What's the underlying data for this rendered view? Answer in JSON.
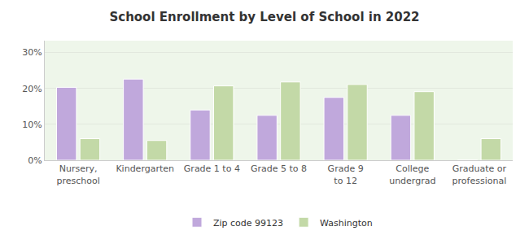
{
  "chart_data": {
    "type": "bar",
    "title": "School Enrollment by Level of School in 2022",
    "categories": [
      "Nursery, preschool",
      "Kindergarten",
      "Grade 1 to 4",
      "Grade 5 to 8",
      "Grade 9 to 12",
      "College undergrad",
      "Graduate or professional"
    ],
    "series": [
      {
        "name": "Zip code 99123",
        "color": "#c0a8dc",
        "values": [
          20.3,
          22.6,
          14.0,
          12.5,
          17.5,
          12.5,
          0
        ]
      },
      {
        "name": "Washington",
        "color": "#c3d9a7",
        "values": [
          6.0,
          5.5,
          20.7,
          21.8,
          21.1,
          19.1,
          6.0
        ]
      }
    ],
    "ylim": [
      0,
      33.3
    ],
    "yticks": [
      {
        "value": 0,
        "label": "0%"
      },
      {
        "value": 10,
        "label": "10%"
      },
      {
        "value": 20,
        "label": "20%"
      },
      {
        "value": 30,
        "label": "30%"
      }
    ],
    "grid": true,
    "legend": "bottom"
  }
}
